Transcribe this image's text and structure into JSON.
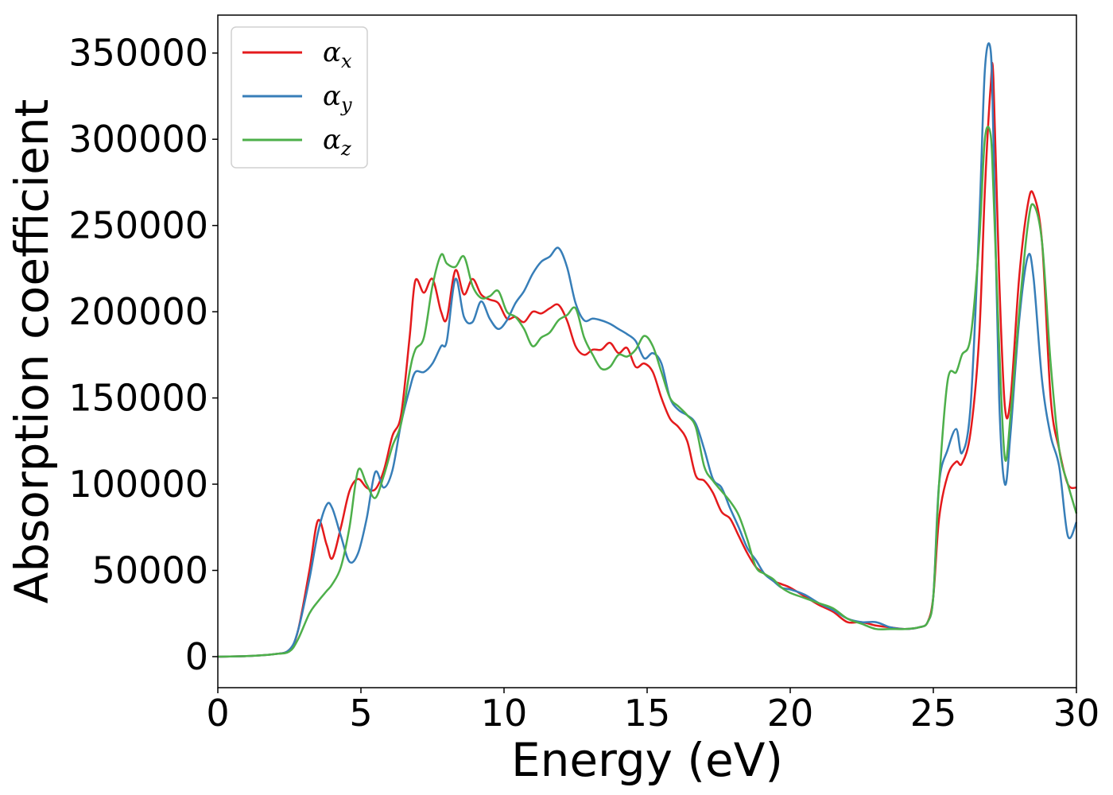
{
  "chart_data": {
    "type": "line",
    "title": "",
    "xlabel": "Energy (eV)",
    "ylabel": "Absorption coefficient",
    "xlim": [
      0,
      30
    ],
    "ylim": [
      -18000,
      372000
    ],
    "xticks": [
      0,
      5,
      10,
      15,
      20,
      25,
      30
    ],
    "xtick_labels": [
      "0",
      "5",
      "10",
      "15",
      "20",
      "25",
      "30"
    ],
    "yticks": [
      0,
      50000,
      100000,
      150000,
      200000,
      250000,
      300000,
      350000
    ],
    "ytick_labels": [
      "0",
      "50000",
      "100000",
      "150000",
      "200000",
      "250000",
      "300000",
      "350000"
    ],
    "grid": false,
    "legend_position": "top-left",
    "series": [
      {
        "name": "α_x",
        "label_base": "α",
        "label_sub": "x",
        "color": "#e41a1c",
        "x": [
          0,
          1,
          2,
          2.5,
          2.8,
          3.2,
          3.5,
          3.8,
          4.0,
          4.3,
          4.6,
          4.9,
          5.2,
          5.5,
          5.8,
          6.1,
          6.4,
          6.7,
          6.9,
          7.2,
          7.5,
          7.8,
          8.0,
          8.3,
          8.6,
          8.9,
          9.2,
          9.5,
          9.8,
          10.1,
          10.4,
          10.7,
          11.0,
          11.3,
          11.6,
          11.9,
          12.2,
          12.5,
          12.8,
          13.1,
          13.4,
          13.7,
          14.0,
          14.3,
          14.6,
          14.9,
          15.2,
          15.5,
          15.8,
          16.1,
          16.4,
          16.7,
          17.0,
          17.3,
          17.6,
          17.9,
          18.2,
          18.5,
          18.8,
          19.1,
          19.4,
          19.7,
          20.0,
          20.5,
          21.0,
          21.5,
          22.0,
          22.5,
          23.0,
          23.5,
          24.0,
          24.5,
          24.8,
          25.0,
          25.2,
          25.5,
          25.8,
          26.0,
          26.3,
          26.6,
          26.8,
          27.0,
          27.1,
          27.3,
          27.5,
          27.7,
          28.0,
          28.3,
          28.5,
          28.8,
          29.1,
          29.4,
          29.7,
          30.0
        ],
        "y": [
          0,
          300,
          1500,
          4000,
          15000,
          50000,
          79000,
          65000,
          57000,
          75000,
          96000,
          103000,
          98000,
          97000,
          108000,
          128000,
          140000,
          185000,
          218000,
          211000,
          219000,
          200000,
          196000,
          224000,
          210000,
          219000,
          210000,
          207000,
          205000,
          196000,
          197000,
          194000,
          200000,
          199000,
          202000,
          204000,
          195000,
          180000,
          175000,
          178000,
          178000,
          182000,
          176000,
          179000,
          168000,
          170000,
          165000,
          150000,
          138000,
          133000,
          125000,
          105000,
          102000,
          95000,
          84000,
          80000,
          70000,
          60000,
          52000,
          48000,
          44000,
          42000,
          40000,
          35000,
          30000,
          26000,
          20000,
          20000,
          18000,
          17000,
          16000,
          17000,
          20000,
          35000,
          80000,
          105000,
          113000,
          112000,
          130000,
          185000,
          270000,
          330000,
          335000,
          220000,
          145000,
          150000,
          220000,
          262000,
          268000,
          240000,
          150000,
          120000,
          100000,
          98000
        ]
      },
      {
        "name": "α_y",
        "label_base": "α",
        "label_sub": "y",
        "color": "#377eb8",
        "x": [
          0,
          1,
          2,
          2.5,
          2.8,
          3.2,
          3.5,
          3.8,
          4.0,
          4.3,
          4.6,
          4.9,
          5.2,
          5.5,
          5.8,
          6.1,
          6.4,
          6.7,
          6.9,
          7.2,
          7.5,
          7.8,
          8.0,
          8.3,
          8.6,
          8.9,
          9.2,
          9.5,
          9.8,
          10.1,
          10.4,
          10.7,
          11.0,
          11.3,
          11.6,
          11.9,
          12.2,
          12.5,
          12.8,
          13.1,
          13.4,
          13.7,
          14.0,
          14.3,
          14.6,
          14.9,
          15.2,
          15.5,
          15.8,
          16.1,
          16.4,
          16.7,
          17.0,
          17.3,
          17.6,
          17.9,
          18.2,
          18.5,
          18.8,
          19.1,
          19.4,
          19.7,
          20.0,
          20.5,
          21.0,
          21.5,
          22.0,
          22.5,
          23.0,
          23.5,
          24.0,
          24.5,
          24.8,
          25.0,
          25.2,
          25.5,
          25.8,
          26.0,
          26.3,
          26.6,
          26.8,
          27.0,
          27.1,
          27.3,
          27.5,
          27.7,
          28.0,
          28.3,
          28.5,
          28.8,
          29.1,
          29.4,
          29.7,
          30.0
        ],
        "y": [
          0,
          300,
          1500,
          4000,
          15000,
          45000,
          72000,
          88000,
          86000,
          70000,
          55000,
          60000,
          80000,
          107000,
          98000,
          108000,
          135000,
          155000,
          165000,
          165000,
          170000,
          180000,
          183000,
          219000,
          197000,
          194000,
          206000,
          196000,
          190000,
          195000,
          205000,
          212000,
          222000,
          229000,
          232000,
          237000,
          226000,
          205000,
          195000,
          196000,
          195000,
          193000,
          190000,
          187000,
          183000,
          173000,
          176000,
          170000,
          150000,
          143000,
          140000,
          135000,
          120000,
          103000,
          98000,
          86000,
          75000,
          63000,
          56000,
          48000,
          44000,
          40000,
          39000,
          36000,
          31000,
          27000,
          22000,
          20000,
          20000,
          17000,
          16000,
          17000,
          20000,
          35000,
          100000,
          120000,
          132000,
          118000,
          145000,
          250000,
          340000,
          352000,
          300000,
          150000,
          100000,
          130000,
          195000,
          232000,
          220000,
          160000,
          128000,
          110000,
          70000,
          78000
        ]
      },
      {
        "name": "α_z",
        "label_base": "α",
        "label_sub": "z",
        "color": "#4daf4a",
        "x": [
          0,
          1,
          2,
          2.5,
          2.8,
          3.2,
          3.5,
          3.8,
          4.0,
          4.3,
          4.6,
          4.9,
          5.2,
          5.5,
          5.8,
          6.1,
          6.4,
          6.7,
          6.9,
          7.2,
          7.5,
          7.8,
          8.0,
          8.3,
          8.6,
          8.9,
          9.2,
          9.5,
          9.8,
          10.1,
          10.4,
          10.7,
          11.0,
          11.3,
          11.6,
          11.9,
          12.2,
          12.5,
          12.8,
          13.1,
          13.4,
          13.7,
          14.0,
          14.3,
          14.6,
          14.9,
          15.2,
          15.5,
          15.8,
          16.1,
          16.4,
          16.7,
          17.0,
          17.3,
          17.6,
          17.9,
          18.2,
          18.5,
          18.8,
          19.1,
          19.4,
          19.7,
          20.0,
          20.5,
          21.0,
          21.5,
          22.0,
          22.5,
          23.0,
          23.5,
          24.0,
          24.5,
          24.8,
          25.0,
          25.2,
          25.5,
          25.8,
          26.0,
          26.3,
          26.6,
          26.8,
          27.0,
          27.1,
          27.3,
          27.5,
          27.7,
          28.0,
          28.3,
          28.5,
          28.8,
          29.1,
          29.4,
          29.7,
          30.0
        ],
        "y": [
          0,
          300,
          1500,
          3000,
          10000,
          25000,
          32000,
          38000,
          42000,
          52000,
          75000,
          108000,
          100000,
          92000,
          105000,
          122000,
          135000,
          165000,
          178000,
          185000,
          215000,
          233000,
          228000,
          226000,
          232000,
          215000,
          208000,
          209000,
          212000,
          200000,
          197000,
          190000,
          180000,
          185000,
          188000,
          195000,
          198000,
          202000,
          185000,
          175000,
          167000,
          168000,
          175000,
          174000,
          178000,
          186000,
          180000,
          165000,
          150000,
          145000,
          140000,
          133000,
          110000,
          102000,
          96000,
          90000,
          82000,
          68000,
          52000,
          48000,
          45000,
          40000,
          37000,
          34000,
          31000,
          28000,
          22000,
          19000,
          16000,
          16000,
          16000,
          17000,
          20000,
          35000,
          100000,
          160000,
          165000,
          175000,
          185000,
          240000,
          300000,
          303000,
          270000,
          180000,
          115000,
          140000,
          200000,
          250000,
          262000,
          240000,
          170000,
          120000,
          100000,
          83000
        ]
      }
    ]
  }
}
